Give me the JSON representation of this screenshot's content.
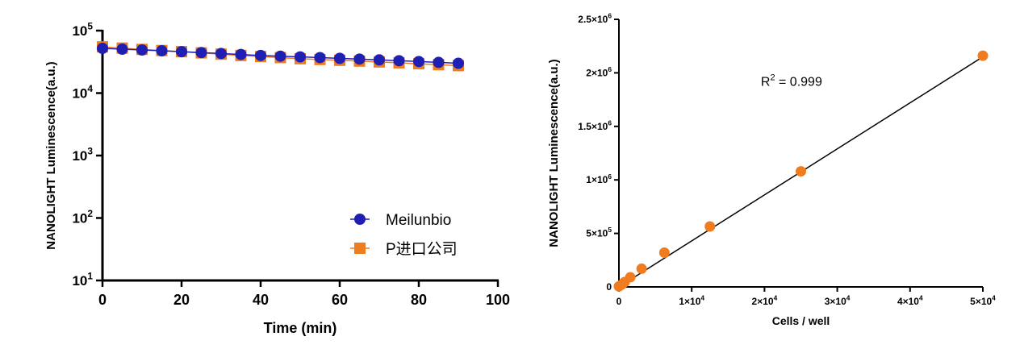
{
  "chart_data": [
    {
      "type": "line",
      "title": "",
      "xlabel": "Time (min)",
      "ylabel": "NANOLIGHT  Luminescence(a.u.)",
      "y_scale": "log",
      "xlim": [
        0,
        100
      ],
      "ylim": [
        10,
        100000
      ],
      "x_ticks": [
        0,
        20,
        40,
        60,
        80,
        100
      ],
      "y_ticks": [
        {
          "value": 10,
          "base": "10",
          "exp": "1"
        },
        {
          "value": 100,
          "base": "10",
          "exp": "2"
        },
        {
          "value": 1000,
          "base": "10",
          "exp": "3"
        },
        {
          "value": 10000,
          "base": "10",
          "exp": "4"
        },
        {
          "value": 100000,
          "base": "10",
          "exp": "5"
        }
      ],
      "grid": false,
      "legend": "bottom-right",
      "x": [
        0,
        5,
        10,
        15,
        20,
        25,
        30,
        35,
        40,
        45,
        50,
        55,
        60,
        65,
        70,
        75,
        80,
        85,
        90
      ],
      "series": [
        {
          "name": "Meilunbio",
          "marker": "circle",
          "color": "#1f1fb4",
          "values": [
            52000,
            50500,
            49000,
            47500,
            46000,
            44500,
            43000,
            41500,
            40000,
            39000,
            38000,
            37000,
            36000,
            35000,
            34000,
            33000,
            32000,
            31000,
            30000
          ]
        },
        {
          "name": "P进口公司",
          "marker": "square",
          "color": "#f07c20",
          "values": [
            55000,
            52500,
            50000,
            48000,
            46000,
            44000,
            42000,
            40000,
            38500,
            37000,
            35500,
            34500,
            33500,
            32500,
            31500,
            30500,
            29500,
            28500,
            27500
          ]
        }
      ]
    },
    {
      "type": "scatter",
      "title": "",
      "xlabel": "Cells / well",
      "ylabel": "NANOLIGHT  Luminescence(a.u.)",
      "xlim": [
        0,
        50000
      ],
      "ylim": [
        0,
        2500000
      ],
      "x_ticks": [
        {
          "value": 0,
          "label": "0",
          "exp": ""
        },
        {
          "value": 10000,
          "label": "1×10",
          "exp": "4"
        },
        {
          "value": 20000,
          "label": "2×10",
          "exp": "4"
        },
        {
          "value": 30000,
          "label": "3×10",
          "exp": "4"
        },
        {
          "value": 40000,
          "label": "4×10",
          "exp": "4"
        },
        {
          "value": 50000,
          "label": "5×10",
          "exp": "4"
        }
      ],
      "y_ticks": [
        {
          "value": 0,
          "label": "0",
          "exp": ""
        },
        {
          "value": 500000,
          "label": "5×10",
          "exp": "5"
        },
        {
          "value": 1000000,
          "label": "1×10",
          "exp": "6"
        },
        {
          "value": 1500000,
          "label": "1.5×10",
          "exp": "6"
        },
        {
          "value": 2000000,
          "label": "2×10",
          "exp": "6"
        },
        {
          "value": 2500000,
          "label": "2.5×10",
          "exp": "6"
        }
      ],
      "grid": false,
      "color": "#f07c20",
      "points": [
        {
          "x": 0,
          "y": 5000
        },
        {
          "x": 390,
          "y": 22000
        },
        {
          "x": 780,
          "y": 45000
        },
        {
          "x": 1560,
          "y": 90000
        },
        {
          "x": 3125,
          "y": 170000
        },
        {
          "x": 6250,
          "y": 320000
        },
        {
          "x": 12500,
          "y": 565000
        },
        {
          "x": 25000,
          "y": 1080000
        },
        {
          "x": 50000,
          "y": 2160000
        }
      ],
      "fit_line": {
        "x": [
          0,
          50000
        ],
        "y": [
          0,
          2150000
        ]
      },
      "annotation": {
        "base": "R",
        "exp": "2",
        "rest": " = 0.999",
        "x": 19500,
        "y": 1880000
      }
    }
  ]
}
